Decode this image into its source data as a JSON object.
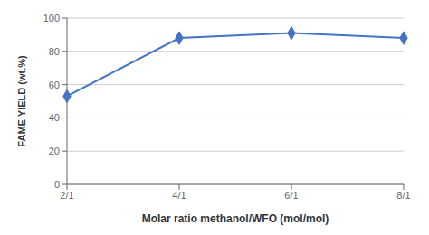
{
  "chart_data": {
    "type": "line",
    "categories": [
      "2/1",
      "4/1",
      "6/1",
      "8/1"
    ],
    "values": [
      53,
      88,
      91,
      88
    ],
    "color": "#4472C4",
    "marker": "diamond",
    "xlabel": "Molar ratio methanol/WFO (mol/mol)",
    "ylabel": "FAME YIELD (wt.%)",
    "ylim": [
      0,
      100
    ],
    "yticks": [
      0,
      20,
      40,
      60,
      80,
      100
    ],
    "grid": true
  }
}
